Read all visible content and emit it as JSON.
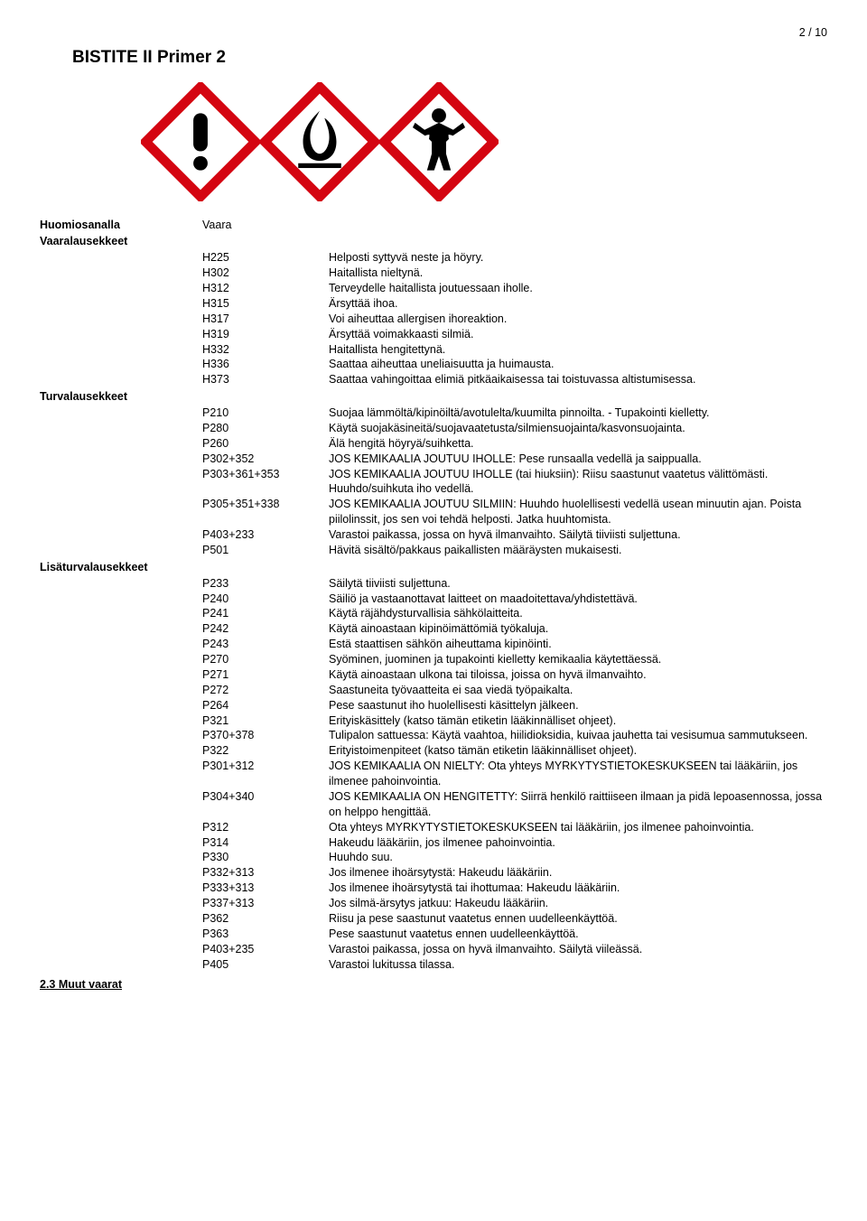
{
  "page_indicator": "2 / 10",
  "title": "BISTITE II Primer 2",
  "pictograms": {
    "border_color": "#d40511",
    "diamond_bg": "#ffffff",
    "symbol_color": "#000000",
    "items": [
      "exclamation",
      "flammable",
      "health_hazard"
    ]
  },
  "signal": {
    "label": "Huomiosanalla",
    "value": "Vaara"
  },
  "hazard": {
    "header": "Vaaralausekkeet",
    "rows": [
      {
        "code": "H225",
        "text": "Helposti syttyvä neste ja höyry."
      },
      {
        "code": "H302",
        "text": "Haitallista nieltynä."
      },
      {
        "code": "H312",
        "text": "Terveydelle haitallista joutuessaan iholle."
      },
      {
        "code": "H315",
        "text": "Ärsyttää ihoa."
      },
      {
        "code": "H317",
        "text": "Voi aiheuttaa allergisen ihoreaktion."
      },
      {
        "code": "H319",
        "text": "Ärsyttää voimakkaasti silmiä."
      },
      {
        "code": "H332",
        "text": "Haitallista hengitettynä."
      },
      {
        "code": "H336",
        "text": "Saattaa aiheuttaa uneliaisuutta ja huimausta."
      },
      {
        "code": "H373",
        "text": "Saattaa vahingoittaa elimiä pitkäaikaisessa tai toistuvassa altistumisessa."
      }
    ]
  },
  "precaution": {
    "header": "Turvalausekkeet",
    "rows": [
      {
        "code": "P210",
        "text": "Suojaa lämmöltä/kipinöiltä/avotulelta/kuumilta pinnoilta. - Tupakointi kielletty."
      },
      {
        "code": "P280",
        "text": "Käytä suojakäsineitä/suojavaatetusta/silmiensuojainta/kasvonsuojainta."
      },
      {
        "code": "P260",
        "text": "Älä hengitä höyryä/suihketta."
      },
      {
        "code": "P302+352",
        "text": "JOS KEMIKAALIA JOUTUU IHOLLE: Pese runsaalla vedellä ja saippualla."
      },
      {
        "code": "P303+361+353",
        "text": "JOS KEMIKAALIA JOUTUU IHOLLE (tai hiuksiin): Riisu saastunut vaatetus välittömästi. Huuhdo/suihkuta iho vedellä."
      },
      {
        "code": "P305+351+338",
        "text": "JOS KEMIKAALIA JOUTUU SILMIIN: Huuhdo huolellisesti vedellä usean minuutin ajan. Poista piilolinssit, jos sen voi tehdä helposti. Jatka huuhtomista."
      },
      {
        "code": "P403+233",
        "text": "Varastoi paikassa, jossa on hyvä ilmanvaihto. Säilytä tiiviisti suljettuna."
      },
      {
        "code": "P501",
        "text": "Hävitä sisältö/pakkaus paikallisten määräysten mukaisesti."
      }
    ]
  },
  "supplemental": {
    "header": "Lisäturvalausekkeet",
    "rows": [
      {
        "code": "P233",
        "text": "Säilytä tiiviisti suljettuna."
      },
      {
        "code": "P240",
        "text": "Säiliö ja vastaanottavat laitteet on maadoitettava/yhdistettävä."
      },
      {
        "code": "P241",
        "text": "Käytä räjähdysturvallisia sähkölaitteita."
      },
      {
        "code": "P242",
        "text": "Käytä ainoastaan kipinöimättömiä työkaluja."
      },
      {
        "code": "P243",
        "text": "Estä staattisen sähkön aiheuttama kipinöinti."
      },
      {
        "code": "P270",
        "text": "Syöminen, juominen ja tupakointi kielletty kemikaalia käytettäessä."
      },
      {
        "code": "P271",
        "text": "Käytä ainoastaan ulkona tai tiloissa, joissa on hyvä ilmanvaihto."
      },
      {
        "code": "P272",
        "text": "Saastuneita työvaatteita ei saa viedä työpaikalta."
      },
      {
        "code": "P264",
        "text": "Pese saastunut iho huolellisesti käsittelyn jälkeen."
      },
      {
        "code": "P321",
        "text": "Erityiskäsittely (katso tämän etiketin lääkinnälliset ohjeet)."
      },
      {
        "code": "P370+378",
        "text": "Tulipalon sattuessa: Käytä vaahtoa, hiilidioksidia, kuivaa jauhetta tai vesisumua sammutukseen."
      },
      {
        "code": "P322",
        "text": "Erityistoimenpiteet (katso tämän etiketin lääkinnälliset ohjeet)."
      },
      {
        "code": "P301+312",
        "text": "JOS KEMIKAALIA ON NIELTY: Ota yhteys MYRKYTYSTIETOKESKUKSEEN tai lääkäriin, jos ilmenee pahoinvointia."
      },
      {
        "code": "P304+340",
        "text": "JOS KEMIKAALIA ON HENGITETTY: Siirrä henkilö raittiiseen ilmaan ja pidä lepoasennossa, jossa on helppo hengittää."
      },
      {
        "code": "P312",
        "text": "Ota yhteys MYRKYTYSTIETOKESKUKSEEN tai lääkäriin, jos ilmenee pahoinvointia."
      },
      {
        "code": "P314",
        "text": "Hakeudu lääkäriin, jos ilmenee pahoinvointia."
      },
      {
        "code": "P330",
        "text": "Huuhdo suu."
      },
      {
        "code": "P332+313",
        "text": "Jos ilmenee ihoärsytystä: Hakeudu lääkäriin."
      },
      {
        "code": "P333+313",
        "text": "Jos ilmenee ihoärsytystä tai ihottumaa: Hakeudu lääkäriin."
      },
      {
        "code": "P337+313",
        "text": "Jos silmä-ärsytys jatkuu: Hakeudu lääkäriin."
      },
      {
        "code": "P362",
        "text": "Riisu ja pese saastunut vaatetus ennen uudelleenkäyttöä."
      },
      {
        "code": "P363",
        "text": "Pese saastunut vaatetus ennen uudelleenkäyttöä."
      },
      {
        "code": "P403+235",
        "text": "Varastoi paikassa, jossa on hyvä ilmanvaihto. Säilytä viileässä."
      },
      {
        "code": "P405",
        "text": "Varastoi lukitussa tilassa."
      }
    ]
  },
  "other_hazards": "2.3 Muut vaarat"
}
